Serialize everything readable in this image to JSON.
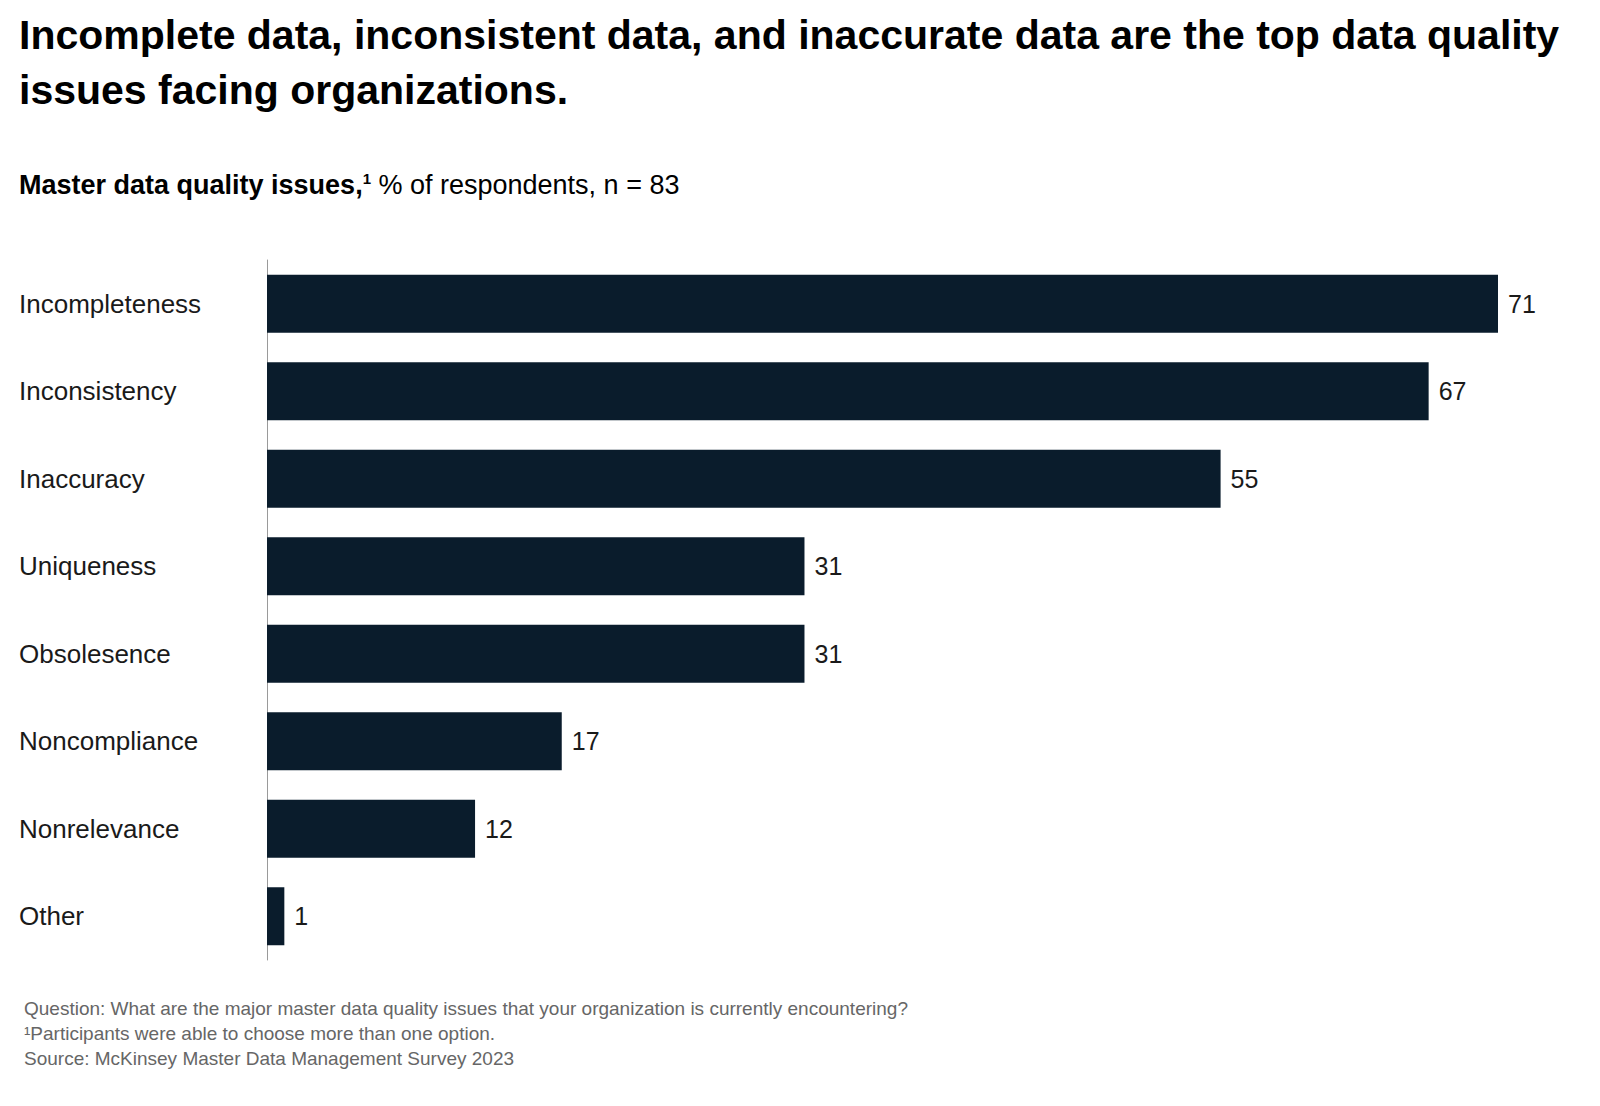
{
  "chart_data": {
    "type": "bar",
    "title": "Incomplete data, inconsistent data, and inaccurate data are the top data quality issues facing organizations.",
    "subtitle": {
      "label": "Master data quality issues,",
      "footnote_mark": "1",
      "units": "% of respondents, n = 83"
    },
    "categories": [
      "Incompleteness",
      "Inconsistency",
      "Inaccuracy",
      "Uniqueness",
      "Obsolesence",
      "Noncompliance",
      "Nonrelevance",
      "Other"
    ],
    "values": [
      71,
      67,
      55,
      31,
      31,
      17,
      12,
      1
    ],
    "color": "#0a1c2c",
    "orientation": "horizontal",
    "data_labels": true,
    "tick_labels": "y",
    "grid": false,
    "xlim": [
      0,
      71
    ],
    "notes": [
      "Question: What are the major master data quality issues that your organization is currently encountering?",
      "¹Participants were able to choose more than one option.",
      "Source: McKinsey Master Data Management Survey 2023"
    ]
  }
}
